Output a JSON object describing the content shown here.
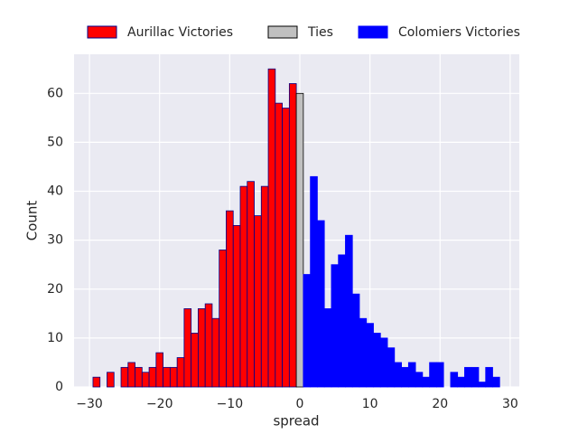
{
  "chart_data": {
    "type": "histogram",
    "xlabel": "spread",
    "ylabel": "Count",
    "xlim": [
      -32.2,
      31.3
    ],
    "ylim": [
      0,
      68
    ],
    "xticks": [
      {
        "value": -30,
        "label": "−30"
      },
      {
        "value": -20,
        "label": "−20"
      },
      {
        "value": -10,
        "label": "−10"
      },
      0,
      10,
      20,
      30
    ],
    "yticks": [
      0,
      10,
      20,
      30,
      40,
      50,
      60
    ],
    "grid": true,
    "legend": "top",
    "series": [
      {
        "name": "Aurillac Victories",
        "color": "#ff0000",
        "edgecolor": "#00008b",
        "bins": [
          -29.5,
          -28.5,
          -27.5,
          -26.5,
          -25.5,
          -24.5,
          -23.5,
          -22.5,
          -21.5,
          -20.5,
          -19.5,
          -18.5,
          -17.5,
          -16.5,
          -15.5,
          -14.5,
          -13.5,
          -12.5,
          -11.5,
          -10.5,
          -9.5,
          -8.5,
          -7.5,
          -6.5,
          -5.5,
          -4.5,
          -3.5,
          -2.5,
          -1.5,
          -0.5
        ],
        "values": [
          2,
          0,
          3,
          0,
          4,
          5,
          4,
          3,
          4,
          7,
          4,
          4,
          6,
          16,
          11,
          16,
          17,
          14,
          28,
          36,
          33,
          41,
          42,
          35,
          41,
          65,
          58,
          57,
          62
        ]
      },
      {
        "name": "Ties",
        "color": "#c0c0c0",
        "edgecolor": "#000000",
        "bins": [
          -0.5,
          0.5
        ],
        "values": [
          60
        ]
      },
      {
        "name": "Colomiers Victories",
        "color": "#0000ff",
        "edgecolor": "#0000ff",
        "bins": [
          0.5,
          1.5,
          2.5,
          3.5,
          4.5,
          5.5,
          6.5,
          7.5,
          8.5,
          9.5,
          10.5,
          11.5,
          12.5,
          13.5,
          14.5,
          15.5,
          16.5,
          17.5,
          18.5,
          19.5,
          20.5,
          21.5,
          22.5,
          23.5,
          24.5,
          25.5,
          26.5,
          27.5,
          28.5
        ],
        "values": [
          23,
          43,
          34,
          16,
          25,
          27,
          31,
          19,
          14,
          13,
          11,
          10,
          8,
          5,
          4,
          5,
          3,
          2,
          5,
          5,
          0,
          3,
          2,
          4,
          4,
          1,
          4,
          2
        ]
      }
    ]
  }
}
